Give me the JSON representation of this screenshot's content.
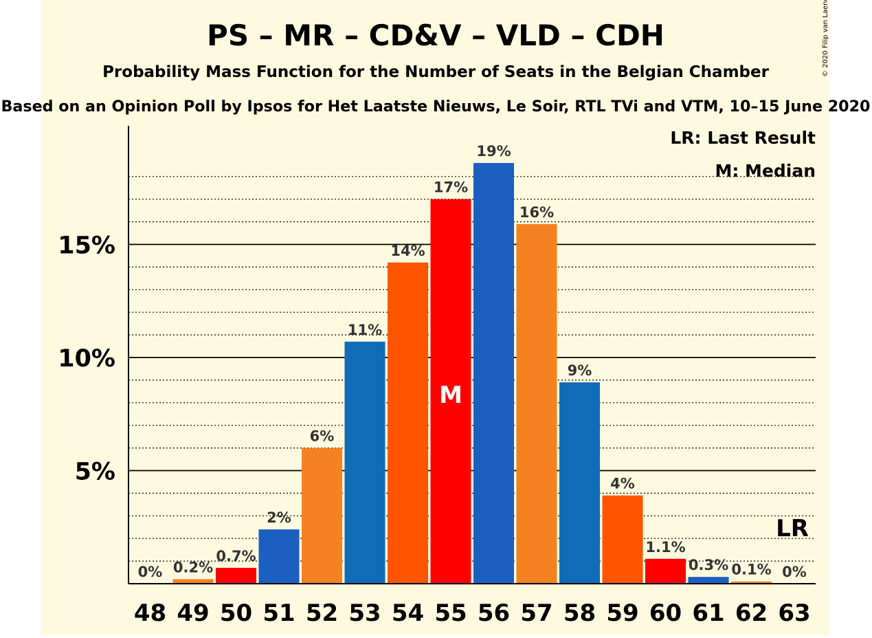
{
  "colors": {
    "background_panel": "#fefae0",
    "page": "#ffffff",
    "ps": "#ff0000",
    "mr": "#1b5fc1",
    "cdv": "#f58220",
    "vld": "#0f6cb6",
    "cdh": "#ff5500",
    "text": "#000000"
  },
  "copyright": "© 2020 Filip van Laenen",
  "chart_data": {
    "type": "bar",
    "title": "PS – MR – CD&V – VLD – CDH",
    "subtitle": "Probability Mass Function for the Number of Seats in the Belgian Chamber",
    "subtitle2": "Based on an Opinion Poll by Ipsos for Het Laatste Nieuws, Le Soir, RTL TVi and VTM, 10–15 June 2020",
    "xlabel": "",
    "ylabel": "",
    "ylim": [
      0,
      20
    ],
    "yticks": [
      {
        "value": 5,
        "label": "5%"
      },
      {
        "value": 10,
        "label": "10%"
      },
      {
        "value": 15,
        "label": "15%"
      }
    ],
    "minor_gridlines": [
      1,
      2,
      3,
      4,
      6,
      7,
      8,
      9,
      11,
      12,
      13,
      14,
      16,
      17,
      18
    ],
    "grid": true,
    "legend": {
      "position": "top-right",
      "entries": [
        "LR: Last Result",
        "M: Median"
      ]
    },
    "categories": [
      "48",
      "49",
      "50",
      "51",
      "52",
      "53",
      "54",
      "55",
      "56",
      "57",
      "58",
      "59",
      "60",
      "61",
      "62",
      "63"
    ],
    "values": [
      0,
      0.2,
      0.7,
      2.4,
      6.0,
      10.7,
      14.2,
      17.0,
      18.6,
      15.9,
      8.9,
      3.9,
      1.1,
      0.3,
      0.1,
      0.0
    ],
    "data_labels": [
      "0%",
      "0.2%",
      "0.7%",
      "2%",
      "6%",
      "11%",
      "14%",
      "17%",
      "19%",
      "16%",
      "9%",
      "4%",
      "1.1%",
      "0.3%",
      "0.1%",
      "0%"
    ],
    "bar_colors": [
      "#0f6cb6",
      "#f58220",
      "#ff0000",
      "#1b5fc1",
      "#f58220",
      "#0f6cb6",
      "#ff5500",
      "#ff0000",
      "#1b5fc1",
      "#f58220",
      "#0f6cb6",
      "#ff5500",
      "#ff0000",
      "#1b5fc1",
      "#f58220",
      "#0f6cb6"
    ],
    "median": {
      "category": "55",
      "label": "M"
    },
    "last_result": {
      "category": "63",
      "label": "LR"
    }
  }
}
